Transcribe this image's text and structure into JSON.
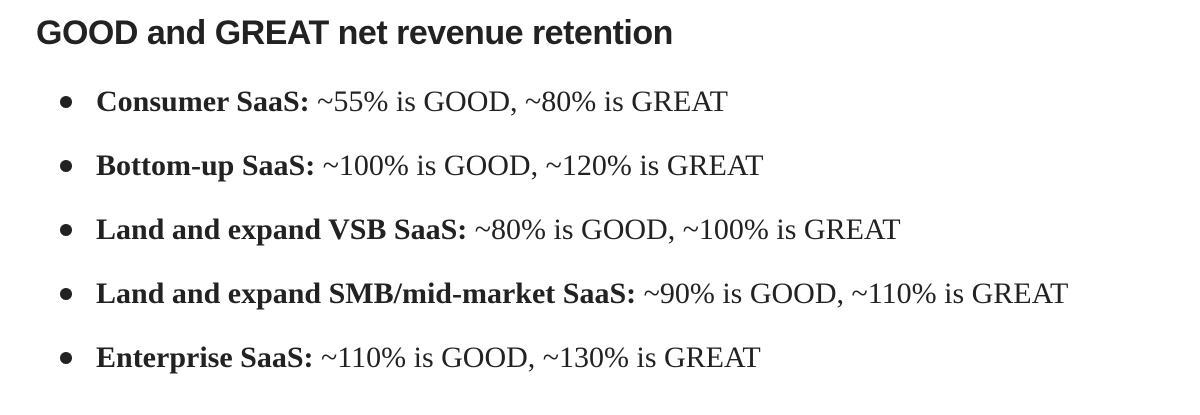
{
  "title": "GOOD and GREAT net revenue retention",
  "items": [
    {
      "label": "Consumer SaaS:",
      "value": " ~55% is GOOD, ~80% is GREAT"
    },
    {
      "label": "Bottom-up SaaS:",
      "value": " ~100% is GOOD, ~120% is GREAT"
    },
    {
      "label": "Land and expand VSB SaaS:",
      "value": " ~80% is GOOD, ~100% is GREAT"
    },
    {
      "label": "Land and expand SMB/mid-market SaaS:",
      "value": " ~90% is GOOD, ~110% is GREAT"
    },
    {
      "label": "Enterprise SaaS:",
      "value": " ~110% is GOOD, ~130% is GREAT"
    }
  ]
}
